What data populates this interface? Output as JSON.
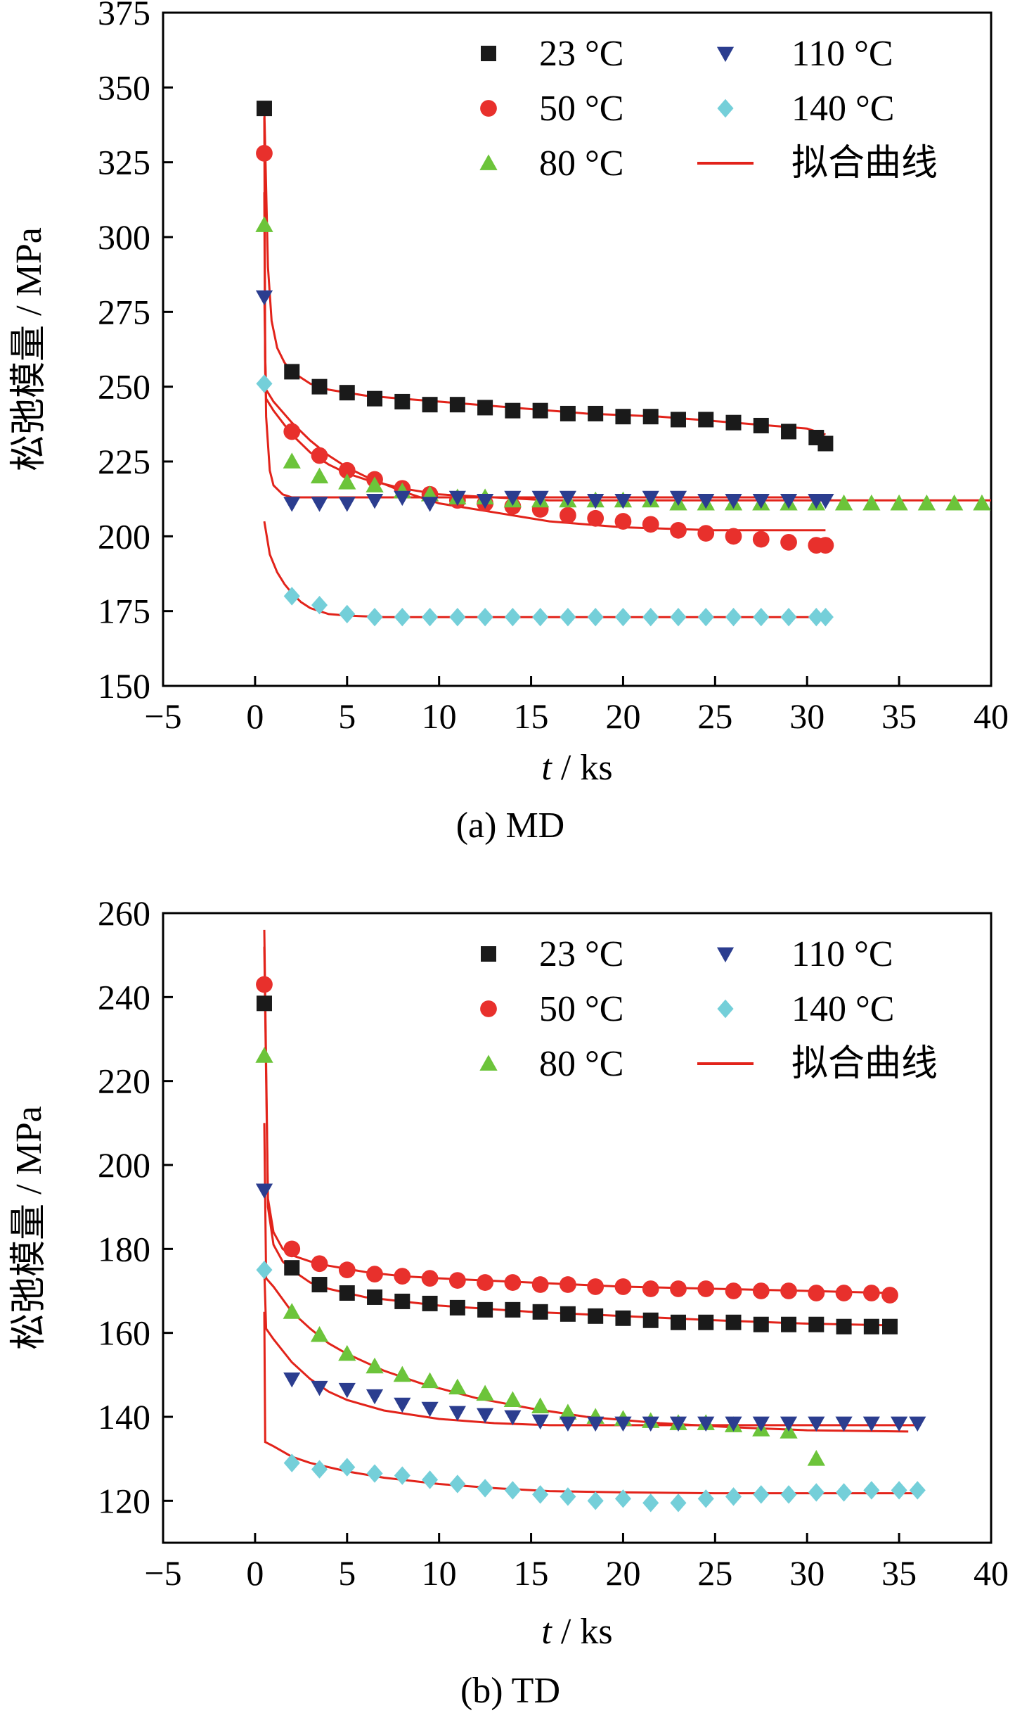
{
  "chart_data": [
    {
      "type": "scatter",
      "caption": "(a)  MD",
      "xlabel_var": "t",
      "xlabel_unit": " / ks",
      "ylabel": "松弛模量 / MPa",
      "xlim": [
        -5,
        40
      ],
      "ylim": [
        150,
        375
      ],
      "xticks": [
        -5,
        0,
        5,
        10,
        15,
        20,
        25,
        30,
        35,
        40
      ],
      "xtick_labels": [
        "−5",
        "0",
        "5",
        "10",
        "15",
        "20",
        "25",
        "30",
        "35",
        "40"
      ],
      "yticks": [
        150,
        175,
        200,
        225,
        250,
        275,
        300,
        325,
        350,
        375
      ],
      "ytick_labels": [
        "150",
        "175",
        "200",
        "225",
        "250",
        "275",
        "300",
        "325",
        "350",
        "375"
      ],
      "grid": false,
      "legend_position": "top-right",
      "legend": {
        "col1": [
          {
            "label": "23 °C",
            "series": 0
          },
          {
            "label": "50 °C",
            "series": 1
          },
          {
            "label": "80 °C",
            "series": 2
          }
        ],
        "col2": [
          {
            "label": "110 °C",
            "series": 3
          },
          {
            "label": "140 °C",
            "series": 4
          },
          {
            "label": "拟合曲线",
            "fit": true
          }
        ]
      },
      "series": [
        {
          "name": "23 °C",
          "marker": "square",
          "color": "#1a1a1a",
          "x": [
            0.5,
            2,
            3.5,
            5,
            6.5,
            8,
            9.5,
            11,
            12.5,
            14,
            15.5,
            17,
            18.5,
            20,
            21.5,
            23,
            24.5,
            26,
            27.5,
            29,
            30.5,
            31
          ],
          "y": [
            343,
            255,
            250,
            248,
            246,
            245,
            244,
            244,
            243,
            242,
            242,
            241,
            241,
            240,
            240,
            239,
            239,
            238,
            237,
            235,
            233,
            231
          ],
          "fit": {
            "x": [
              0.5,
              0.7,
              0.9,
              1.2,
              1.6,
              2,
              3,
              4,
              6,
              8,
              10,
              14,
              18,
              22,
              26,
              30,
              31
            ],
            "y": [
              343,
              290,
              272,
              263,
              258,
              255,
              251,
              249,
              247,
              246,
              245,
              243,
              241,
              240,
              238,
              236,
              234
            ]
          }
        },
        {
          "name": "50 °C",
          "marker": "circle",
          "color": "#e8302c",
          "x": [
            0.5,
            2,
            3.5,
            5,
            6.5,
            8,
            9.5,
            11,
            12.5,
            14,
            15.5,
            17,
            18.5,
            20,
            21.5,
            23,
            24.5,
            26,
            27.5,
            29,
            30.5,
            31
          ],
          "y": [
            328,
            235,
            227,
            222,
            219,
            216,
            214,
            212,
            211,
            210,
            209,
            207,
            206,
            205,
            204,
            202,
            201,
            200,
            199,
            198,
            197,
            197
          ],
          "fit": {
            "x": [
              0.5,
              0.55,
              0.6,
              1,
              2,
              3,
              4,
              5,
              6,
              8,
              10,
              13,
              16,
              20,
              25,
              31
            ],
            "y": [
              340,
              260,
              249,
              245,
              238,
              232,
              227,
              223,
              220,
              215,
              211,
              208,
              205,
              203,
              202,
              202
            ]
          }
        },
        {
          "name": "80 °C",
          "marker": "triangle-up",
          "color": "#6cc43a",
          "x": [
            0.5,
            2,
            3.5,
            5,
            6.5,
            8,
            9.5,
            11,
            12.5,
            14,
            15.5,
            17,
            18.5,
            20,
            21.5,
            23,
            24.5,
            26,
            27.5,
            29,
            30.5,
            32,
            33.5,
            35,
            36.5,
            38,
            39.5
          ],
          "y": [
            304,
            225,
            220,
            218,
            217,
            215,
            214,
            213,
            213,
            212,
            212,
            212,
            212,
            212,
            212,
            211,
            211,
            211,
            211,
            211,
            211,
            211,
            211,
            211,
            211,
            211,
            211
          ],
          "fit": {
            "x": [
              0.5,
              0.55,
              0.6,
              1,
              2,
              3,
              4,
              5,
              6,
              8,
              10,
              13,
              16,
              20,
              30,
              40
            ],
            "y": [
              315,
              255,
              246,
              242,
              234,
              228,
              224,
              221,
              219,
              216,
              214,
              213,
              212,
              212,
              212,
              212
            ]
          }
        },
        {
          "name": "110 °C",
          "marker": "triangle-down",
          "color": "#2b3d8f",
          "x": [
            0.5,
            2,
            3.5,
            5,
            6.5,
            8,
            9.5,
            11,
            12.5,
            14,
            15.5,
            17,
            18.5,
            20,
            21.5,
            23,
            24.5,
            26,
            27.5,
            29,
            30.5,
            31
          ],
          "y": [
            280,
            211,
            211,
            211,
            212,
            213,
            211,
            213,
            212,
            213,
            213,
            213,
            212,
            212,
            213,
            213,
            212,
            212,
            212,
            212,
            212,
            212
          ],
          "fit": {
            "x": [
              0.5,
              0.6,
              0.8,
              1,
              1.5,
              2,
              3,
              5,
              10,
              20,
              31
            ],
            "y": [
              282,
              240,
              222,
              217,
              214,
              213,
              213,
              213,
              213,
              213,
              213
            ]
          }
        },
        {
          "name": "140 °C",
          "marker": "diamond",
          "color": "#74cfd9",
          "x": [
            0.5,
            2,
            3.5,
            5,
            6.5,
            8,
            9.5,
            11,
            12.5,
            14,
            15.5,
            17,
            18.5,
            20,
            21.5,
            23,
            24.5,
            26,
            27.5,
            29,
            30.5,
            31
          ],
          "y": [
            251,
            180,
            177,
            174,
            173,
            173,
            173,
            173,
            173,
            173,
            173,
            173,
            173,
            173,
            173,
            173,
            173,
            173,
            173,
            173,
            173,
            173
          ],
          "fit": {
            "x": [
              0.5,
              0.8,
              1.2,
              1.6,
              2,
              2.5,
              3,
              4,
              5,
              7,
              10,
              20,
              31
            ],
            "y": [
              205,
              194,
              188,
              184,
              181,
              178,
              176,
              174,
              173.5,
              173,
              173,
              173,
              173
            ]
          }
        }
      ]
    },
    {
      "type": "scatter",
      "caption": "(b)  TD",
      "xlabel_var": "t",
      "xlabel_unit": " / ks",
      "ylabel": "松弛模量 / MPa",
      "xlim": [
        -5,
        40
      ],
      "ylim": [
        110,
        260
      ],
      "xticks": [
        -5,
        0,
        5,
        10,
        15,
        20,
        25,
        30,
        35,
        40
      ],
      "xtick_labels": [
        "−5",
        "0",
        "5",
        "10",
        "15",
        "20",
        "25",
        "30",
        "35",
        "40"
      ],
      "yticks": [
        120,
        140,
        160,
        180,
        200,
        220,
        240,
        260
      ],
      "ytick_labels": [
        "120",
        "140",
        "160",
        "180",
        "200",
        "220",
        "240",
        "260"
      ],
      "grid": false,
      "legend_position": "top-right",
      "legend": {
        "col1": [
          {
            "label": "23 °C",
            "series": 0
          },
          {
            "label": "50 °C",
            "series": 1
          },
          {
            "label": "80 °C",
            "series": 2
          }
        ],
        "col2": [
          {
            "label": "110 °C",
            "series": 3
          },
          {
            "label": "140 °C",
            "series": 4
          },
          {
            "label": "拟合曲线",
            "fit": true
          }
        ]
      },
      "series": [
        {
          "name": "23 °C",
          "marker": "square",
          "color": "#1a1a1a",
          "x": [
            0.5,
            2,
            3.5,
            5,
            6.5,
            8,
            9.5,
            11,
            12.5,
            14,
            15.5,
            17,
            18.5,
            20,
            21.5,
            23,
            24.5,
            26,
            27.5,
            29,
            30.5,
            32,
            33.5,
            34.5
          ],
          "y": [
            238.5,
            175.5,
            171.5,
            169.5,
            168.5,
            167.5,
            167,
            166,
            165.5,
            165.5,
            165,
            164.5,
            164,
            163.5,
            163,
            162.5,
            162.5,
            162.5,
            162,
            162,
            162,
            161.5,
            161.5,
            161.5
          ],
          "fit": {
            "x": [
              0.5,
              0.7,
              1,
              1.5,
              2,
              3,
              4,
              6,
              8,
              10,
              15,
              20,
              25,
              30,
              34.5
            ],
            "y": [
              252,
              190,
              181,
              177,
              175,
              172,
              170.5,
              168.5,
              167.5,
              166.5,
              165,
              164,
              163,
              162.2,
              161.8
            ]
          }
        },
        {
          "name": "50 °C",
          "marker": "circle",
          "color": "#e8302c",
          "x": [
            0.5,
            2,
            3.5,
            5,
            6.5,
            8,
            9.5,
            11,
            12.5,
            14,
            15.5,
            17,
            18.5,
            20,
            21.5,
            23,
            24.5,
            26,
            27.5,
            29,
            30.5,
            32,
            33.5,
            34.5
          ],
          "y": [
            243,
            180,
            176.5,
            175,
            174,
            173.5,
            173,
            172.5,
            172,
            172,
            171.5,
            171.5,
            171,
            171,
            170.5,
            170.5,
            170.5,
            170,
            170,
            170,
            169.5,
            169.5,
            169.5,
            169
          ],
          "fit": {
            "x": [
              0.5,
              0.7,
              1,
              1.5,
              2,
              3,
              4,
              6,
              8,
              10,
              15,
              20,
              25,
              30,
              34.5
            ],
            "y": [
              256,
              192,
              184,
              180,
              178.5,
              177,
              176,
              174.5,
              173.5,
              173,
              172,
              171,
              170.5,
              170,
              169.5
            ]
          }
        },
        {
          "name": "80 °C",
          "marker": "triangle-up",
          "color": "#6cc43a",
          "x": [
            0.5,
            2,
            3.5,
            5,
            6.5,
            8,
            9.5,
            11,
            12.5,
            14,
            15.5,
            17,
            18.5,
            20,
            21.5,
            23,
            24.5,
            26,
            27.5,
            29,
            30.5
          ],
          "y": [
            226,
            165,
            159.5,
            155,
            152,
            150,
            148.5,
            147,
            145.5,
            144,
            142.5,
            141,
            140,
            139.5,
            139,
            138.5,
            138.5,
            138,
            137,
            136.5,
            130
          ],
          "fit": {
            "x": [
              0.5,
              0.6,
              1,
              2,
              3,
              4,
              5,
              7,
              9,
              12,
              15,
              18,
              22,
              26,
              30,
              35.5
            ],
            "y": [
              210,
              173,
              171,
              165,
              161,
              157.5,
              155,
              151,
              148,
              144.5,
              142,
              140,
              138.5,
              137.5,
              136.8,
              136.5
            ]
          }
        },
        {
          "name": "110 °C",
          "marker": "triangle-down",
          "color": "#2b3d8f",
          "x": [
            0.5,
            2,
            3.5,
            5,
            6.5,
            8,
            9.5,
            11,
            12.5,
            14,
            15.5,
            17,
            18.5,
            20,
            21.5,
            23,
            24.5,
            26,
            27.5,
            29,
            30.5,
            32,
            33.5,
            35,
            36
          ],
          "y": [
            194,
            149,
            147,
            146.5,
            145,
            143,
            142,
            141,
            140.5,
            140,
            139,
            138.5,
            138.5,
            138.5,
            138.5,
            138.5,
            138.5,
            138.5,
            138.5,
            138.5,
            138.5,
            138.5,
            138.5,
            138.5,
            138.5
          ],
          "fit": {
            "x": [
              0.5,
              0.6,
              1,
              2,
              3,
              4,
              5,
              7,
              10,
              13,
              16,
              20,
              25,
              30,
              36
            ],
            "y": [
              175,
              161,
              158.5,
              153,
              149,
              146,
              144,
              141.5,
              139.5,
              138.5,
              138,
              138,
              138,
              138,
              138
            ]
          }
        },
        {
          "name": "140 °C",
          "marker": "diamond",
          "color": "#74cfd9",
          "x": [
            0.5,
            2,
            3.5,
            5,
            6.5,
            8,
            9.5,
            11,
            12.5,
            14,
            15.5,
            17,
            18.5,
            20,
            21.5,
            23,
            24.5,
            26,
            27.5,
            29,
            30.5,
            32,
            33.5,
            35,
            36
          ],
          "y": [
            175,
            129,
            127.5,
            128,
            126.5,
            126,
            125,
            124,
            123,
            122.5,
            121.5,
            121,
            120,
            120.5,
            119.5,
            119.5,
            120.5,
            121,
            121.5,
            121.5,
            122,
            122,
            122.5,
            122.5,
            122.5
          ],
          "fit": {
            "x": [
              0.5,
              0.55,
              1,
              2,
              3,
              5,
              7,
              10,
              13,
              16,
              20,
              25,
              30,
              36
            ],
            "y": [
              165,
              134,
              133,
              130.5,
              129,
              127,
              125.5,
              124,
              123,
              122.3,
              122,
              121.8,
              121.8,
              121.8
            ]
          }
        }
      ]
    }
  ]
}
